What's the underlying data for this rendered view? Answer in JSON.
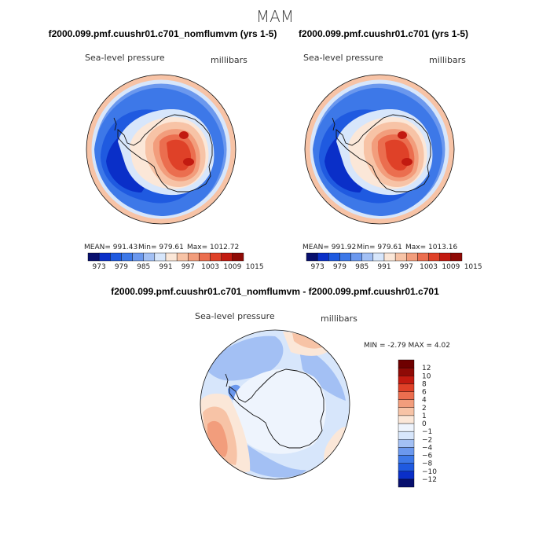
{
  "figure": {
    "title": "MAM"
  },
  "chart_data": [
    {
      "type": "heatmap",
      "projection": "south-polar-stereographic",
      "title": "f2000.099.pmf.cuushr01.c701_nomflumvm (yrs 1-5)",
      "variable": "Sea-level pressure",
      "units": "millibars",
      "stats": {
        "mean": "MEAN= 991.43",
        "min": "Min= 979.61",
        "max": "Max= 1012.72"
      },
      "colorbar": {
        "orientation": "horizontal",
        "levels": [
          973,
          979,
          985,
          991,
          997,
          1003,
          1009,
          1015
        ],
        "colors": [
          "#08106e",
          "#0a2fc8",
          "#1f5ae0",
          "#3d78e8",
          "#6b98ee",
          "#a3c0f4",
          "#d7e6fb",
          "#fbe7d8",
          "#f7c3a6",
          "#f29d7c",
          "#eb6e4f",
          "#df4128",
          "#c21a10",
          "#8f0a06"
        ]
      }
    },
    {
      "type": "heatmap",
      "projection": "south-polar-stereographic",
      "title": "f2000.099.pmf.cuushr01.c701 (yrs 1-5)",
      "variable": "Sea-level pressure",
      "units": "millibars",
      "stats": {
        "mean": "MEAN= 991.92",
        "min": "Min= 979.61",
        "max": "Max= 1013.16"
      },
      "colorbar": {
        "orientation": "horizontal",
        "levels": [
          973,
          979,
          985,
          991,
          997,
          1003,
          1009,
          1015
        ],
        "colors": [
          "#08106e",
          "#0a2fc8",
          "#1f5ae0",
          "#3d78e8",
          "#6b98ee",
          "#a3c0f4",
          "#d7e6fb",
          "#fbe7d8",
          "#f7c3a6",
          "#f29d7c",
          "#eb6e4f",
          "#df4128",
          "#c21a10",
          "#8f0a06"
        ]
      }
    },
    {
      "type": "heatmap",
      "projection": "south-polar-stereographic",
      "title": "f2000.099.pmf.cuushr01.c701_nomflumvm - f2000.099.pmf.cuushr01.c701",
      "variable": "Sea-level pressure",
      "units": "millibars",
      "stats": {
        "min_max": "MIN =   -2.79 MAX =    4.02"
      },
      "colorbar": {
        "orientation": "vertical",
        "levels": [
          -12,
          -10,
          -8,
          -6,
          -4,
          -2,
          -1,
          0,
          1,
          2,
          4,
          6,
          8,
          10,
          12
        ],
        "colors": [
          "#08106e",
          "#0a2fc8",
          "#1f5ae0",
          "#3d78e8",
          "#6b98ee",
          "#a3c0f4",
          "#d7e6fb",
          "#eef4fd",
          "#fbe7d8",
          "#f7c3a6",
          "#f29d7c",
          "#eb6e4f",
          "#df4128",
          "#c21a10",
          "#8f0a06",
          "#6e0000"
        ]
      }
    }
  ]
}
